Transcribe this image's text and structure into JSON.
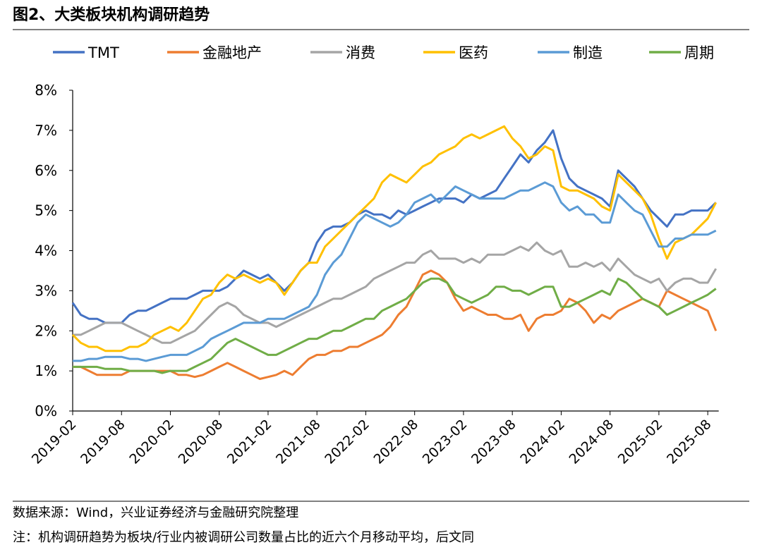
{
  "chart_data": {
    "type": "line",
    "title": "图2、大类板块机构调研趋势",
    "source": "数据来源：Wind，兴业证券经济与金融研究院整理",
    "note": "注：机构调研趋势为板块/行业内被调研公司数量占比的近六个月移动平均，后文同",
    "x": [
      "2019-02",
      "2019-03",
      "2019-04",
      "2019-05",
      "2019-06",
      "2019-07",
      "2019-08",
      "2019-09",
      "2019-10",
      "2019-11",
      "2019-12",
      "2020-01",
      "2020-02",
      "2020-03",
      "2020-04",
      "2020-05",
      "2020-06",
      "2020-07",
      "2020-08",
      "2020-09",
      "2020-10",
      "2020-11",
      "2020-12",
      "2021-01",
      "2021-02",
      "2021-03",
      "2021-04",
      "2021-05",
      "2021-06",
      "2021-07",
      "2021-08",
      "2021-09",
      "2021-10",
      "2021-11",
      "2021-12",
      "2022-01",
      "2022-02",
      "2022-03",
      "2022-04",
      "2022-05",
      "2022-06",
      "2022-07",
      "2022-08",
      "2022-09",
      "2022-10",
      "2022-11",
      "2022-12",
      "2023-01",
      "2023-02",
      "2023-03",
      "2023-04",
      "2023-05",
      "2023-06",
      "2023-07",
      "2023-08",
      "2023-09",
      "2023-10",
      "2023-11",
      "2023-12",
      "2024-01",
      "2024-02",
      "2024-03",
      "2024-04",
      "2024-05",
      "2024-06",
      "2024-07",
      "2024-08",
      "2024-09",
      "2024-10",
      "2024-11",
      "2024-12",
      "2025-01",
      "2025-02",
      "2025-03",
      "2025-04",
      "2025-05",
      "2025-06",
      "2025-07",
      "2025-08",
      "2025-09"
    ],
    "xticks": [
      "2019-02",
      "2019-08",
      "2020-02",
      "2020-08",
      "2021-02",
      "2021-08",
      "2022-02",
      "2022-08",
      "2023-02",
      "2023-08",
      "2024-02",
      "2024-08",
      "2025-02",
      "2025-08"
    ],
    "ylim": [
      0,
      8
    ],
    "yticks": [
      {
        "value": 0,
        "label": "0%"
      },
      {
        "value": 1,
        "label": "1%"
      },
      {
        "value": 2,
        "label": "2%"
      },
      {
        "value": 3,
        "label": "3%"
      },
      {
        "value": 4,
        "label": "4%"
      },
      {
        "value": 5,
        "label": "5%"
      },
      {
        "value": 6,
        "label": "6%"
      },
      {
        "value": 7,
        "label": "7%"
      },
      {
        "value": 8,
        "label": "8%"
      }
    ],
    "grid": false,
    "legend": "top",
    "series": [
      {
        "name": "TMT",
        "color": "#4472c4",
        "values": [
          2.7,
          2.4,
          2.3,
          2.3,
          2.2,
          2.2,
          2.2,
          2.4,
          2.5,
          2.5,
          2.6,
          2.7,
          2.8,
          2.8,
          2.8,
          2.9,
          3.0,
          3.0,
          3.0,
          3.1,
          3.3,
          3.5,
          3.4,
          3.3,
          3.4,
          3.2,
          3.0,
          3.2,
          3.5,
          3.7,
          4.2,
          4.5,
          4.6,
          4.6,
          4.7,
          4.9,
          5.0,
          4.9,
          4.9,
          4.8,
          5.0,
          4.9,
          5.0,
          5.1,
          5.2,
          5.3,
          5.3,
          5.3,
          5.2,
          5.4,
          5.3,
          5.4,
          5.5,
          5.8,
          6.1,
          6.4,
          6.2,
          6.5,
          6.7,
          7.0,
          6.3,
          5.8,
          5.6,
          5.5,
          5.4,
          5.3,
          5.1,
          6.0,
          5.8,
          5.6,
          5.3,
          5.0,
          4.8,
          4.6,
          4.9,
          4.9,
          5.0,
          5.0,
          5.0,
          5.2
        ]
      },
      {
        "name": "金融地产",
        "color": "#ed7d31",
        "values": [
          1.1,
          1.1,
          1.0,
          0.9,
          0.9,
          0.9,
          0.9,
          1.0,
          1.0,
          1.0,
          1.0,
          1.0,
          1.0,
          0.9,
          0.9,
          0.85,
          0.9,
          1.0,
          1.1,
          1.2,
          1.1,
          1.0,
          0.9,
          0.8,
          0.85,
          0.9,
          1.0,
          0.9,
          1.1,
          1.3,
          1.4,
          1.4,
          1.5,
          1.5,
          1.6,
          1.6,
          1.7,
          1.8,
          1.9,
          2.1,
          2.4,
          2.6,
          3.0,
          3.4,
          3.5,
          3.4,
          3.2,
          2.8,
          2.5,
          2.6,
          2.5,
          2.4,
          2.4,
          2.3,
          2.3,
          2.4,
          2.0,
          2.3,
          2.4,
          2.4,
          2.5,
          2.8,
          2.7,
          2.5,
          2.2,
          2.4,
          2.3,
          2.5,
          2.6,
          2.7,
          2.8,
          2.7,
          2.6,
          3.0,
          2.9,
          2.8,
          2.7,
          2.6,
          2.5,
          2.0
        ]
      },
      {
        "name": "消费",
        "color": "#a5a5a5",
        "values": [
          1.9,
          1.9,
          2.0,
          2.1,
          2.2,
          2.2,
          2.2,
          2.1,
          2.0,
          1.9,
          1.8,
          1.7,
          1.7,
          1.8,
          1.9,
          2.0,
          2.2,
          2.4,
          2.6,
          2.7,
          2.6,
          2.4,
          2.3,
          2.2,
          2.2,
          2.1,
          2.2,
          2.3,
          2.4,
          2.5,
          2.6,
          2.7,
          2.8,
          2.8,
          2.9,
          3.0,
          3.1,
          3.3,
          3.4,
          3.5,
          3.6,
          3.7,
          3.7,
          3.9,
          4.0,
          3.8,
          3.8,
          3.8,
          3.7,
          3.8,
          3.7,
          3.9,
          3.9,
          3.9,
          4.0,
          4.1,
          4.0,
          4.2,
          4.0,
          3.9,
          4.0,
          3.6,
          3.6,
          3.7,
          3.6,
          3.7,
          3.5,
          3.8,
          3.6,
          3.4,
          3.3,
          3.2,
          3.3,
          3.0,
          3.2,
          3.3,
          3.3,
          3.2,
          3.2,
          3.55
        ]
      },
      {
        "name": "医药",
        "color": "#ffc000",
        "values": [
          1.9,
          1.7,
          1.6,
          1.6,
          1.5,
          1.5,
          1.5,
          1.6,
          1.6,
          1.7,
          1.9,
          2.0,
          2.1,
          2.0,
          2.2,
          2.5,
          2.8,
          2.9,
          3.2,
          3.4,
          3.3,
          3.4,
          3.3,
          3.2,
          3.3,
          3.2,
          2.9,
          3.2,
          3.5,
          3.7,
          3.7,
          4.1,
          4.3,
          4.5,
          4.7,
          4.9,
          5.1,
          5.3,
          5.7,
          5.9,
          5.8,
          5.7,
          5.9,
          6.1,
          6.2,
          6.4,
          6.5,
          6.6,
          6.8,
          6.9,
          6.8,
          6.9,
          7.0,
          7.1,
          6.8,
          6.6,
          6.3,
          6.4,
          6.6,
          6.5,
          5.6,
          5.5,
          5.5,
          5.4,
          5.3,
          5.1,
          5.0,
          5.9,
          5.7,
          5.5,
          5.3,
          4.9,
          4.3,
          3.8,
          4.2,
          4.3,
          4.4,
          4.6,
          4.8,
          5.2
        ]
      },
      {
        "name": "制造",
        "color": "#5b9bd5",
        "values": [
          1.25,
          1.25,
          1.3,
          1.3,
          1.35,
          1.35,
          1.35,
          1.3,
          1.3,
          1.25,
          1.3,
          1.35,
          1.4,
          1.4,
          1.4,
          1.5,
          1.6,
          1.8,
          1.9,
          2.0,
          2.1,
          2.2,
          2.2,
          2.2,
          2.3,
          2.3,
          2.3,
          2.4,
          2.5,
          2.6,
          2.9,
          3.4,
          3.7,
          3.9,
          4.3,
          4.7,
          4.9,
          4.8,
          4.7,
          4.6,
          4.7,
          4.9,
          5.2,
          5.3,
          5.4,
          5.2,
          5.4,
          5.6,
          5.5,
          5.4,
          5.3,
          5.3,
          5.3,
          5.3,
          5.4,
          5.5,
          5.5,
          5.6,
          5.7,
          5.6,
          5.2,
          5.0,
          5.1,
          4.9,
          4.9,
          4.7,
          4.7,
          5.4,
          5.2,
          5.0,
          4.9,
          4.5,
          4.1,
          4.1,
          4.3,
          4.3,
          4.4,
          4.4,
          4.4,
          4.5
        ]
      },
      {
        "name": "周期",
        "color": "#70ad47",
        "values": [
          1.1,
          1.1,
          1.1,
          1.1,
          1.05,
          1.05,
          1.05,
          1.0,
          1.0,
          1.0,
          1.0,
          0.95,
          1.0,
          1.0,
          1.0,
          1.1,
          1.2,
          1.3,
          1.5,
          1.7,
          1.8,
          1.7,
          1.6,
          1.5,
          1.4,
          1.4,
          1.5,
          1.6,
          1.7,
          1.8,
          1.8,
          1.9,
          2.0,
          2.0,
          2.1,
          2.2,
          2.3,
          2.3,
          2.5,
          2.6,
          2.7,
          2.8,
          3.0,
          3.2,
          3.3,
          3.3,
          3.2,
          2.9,
          2.8,
          2.7,
          2.8,
          2.9,
          3.1,
          3.1,
          3.0,
          3.0,
          2.9,
          3.0,
          3.1,
          3.1,
          2.6,
          2.6,
          2.7,
          2.8,
          2.9,
          3.0,
          2.9,
          3.3,
          3.2,
          3.0,
          2.8,
          2.7,
          2.6,
          2.4,
          2.5,
          2.6,
          2.7,
          2.8,
          2.9,
          3.05
        ]
      }
    ]
  }
}
